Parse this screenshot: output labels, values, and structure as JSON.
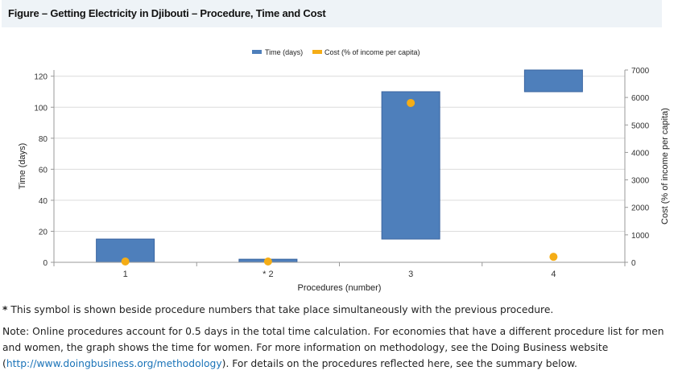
{
  "title": "Figure – Getting Electricity in Djibouti – Procedure, Time and Cost",
  "chart_data": {
    "type": "bar",
    "subtype": "waterfall with scatter overlay",
    "categories": [
      "1",
      "* 2",
      "3",
      "4"
    ],
    "series": [
      {
        "name": "Time (days)",
        "start": [
          0,
          0,
          15,
          110
        ],
        "end": [
          15,
          2,
          110,
          125
        ],
        "color": "#4e7fbb"
      },
      {
        "name": "Cost (% of income per capita)",
        "values": [
          30,
          30,
          5800,
          200
        ],
        "color": "#f5ad16",
        "axis": "right"
      }
    ],
    "xlabel": "Procedures (number)",
    "ylabel": "Time (days)",
    "y2label": "Cost (% of income per capita)",
    "ylim": [
      0,
      124
    ],
    "y2lim": [
      0,
      7000
    ],
    "yticks": [
      0,
      20,
      40,
      60,
      80,
      100,
      120
    ],
    "y2ticks": [
      0,
      1000,
      2000,
      3000,
      4000,
      5000,
      6000,
      7000
    ],
    "grid": true,
    "legend": "top-center"
  },
  "footnote_star": "*",
  "footnote": " This symbol is shown beside procedure numbers that take place simultaneously with the previous procedure.",
  "note_pre": "Note: Online procedures account for 0.5 days in the total time calculation. For economies that have a different procedure list for men and women, the graph shows the time for women.  For more information on methodology, see the Doing Business website (",
  "note_link": "http://www.doingbusiness.org/methodology",
  "note_post": "). For details on the procedures reflected here, see the summary below."
}
